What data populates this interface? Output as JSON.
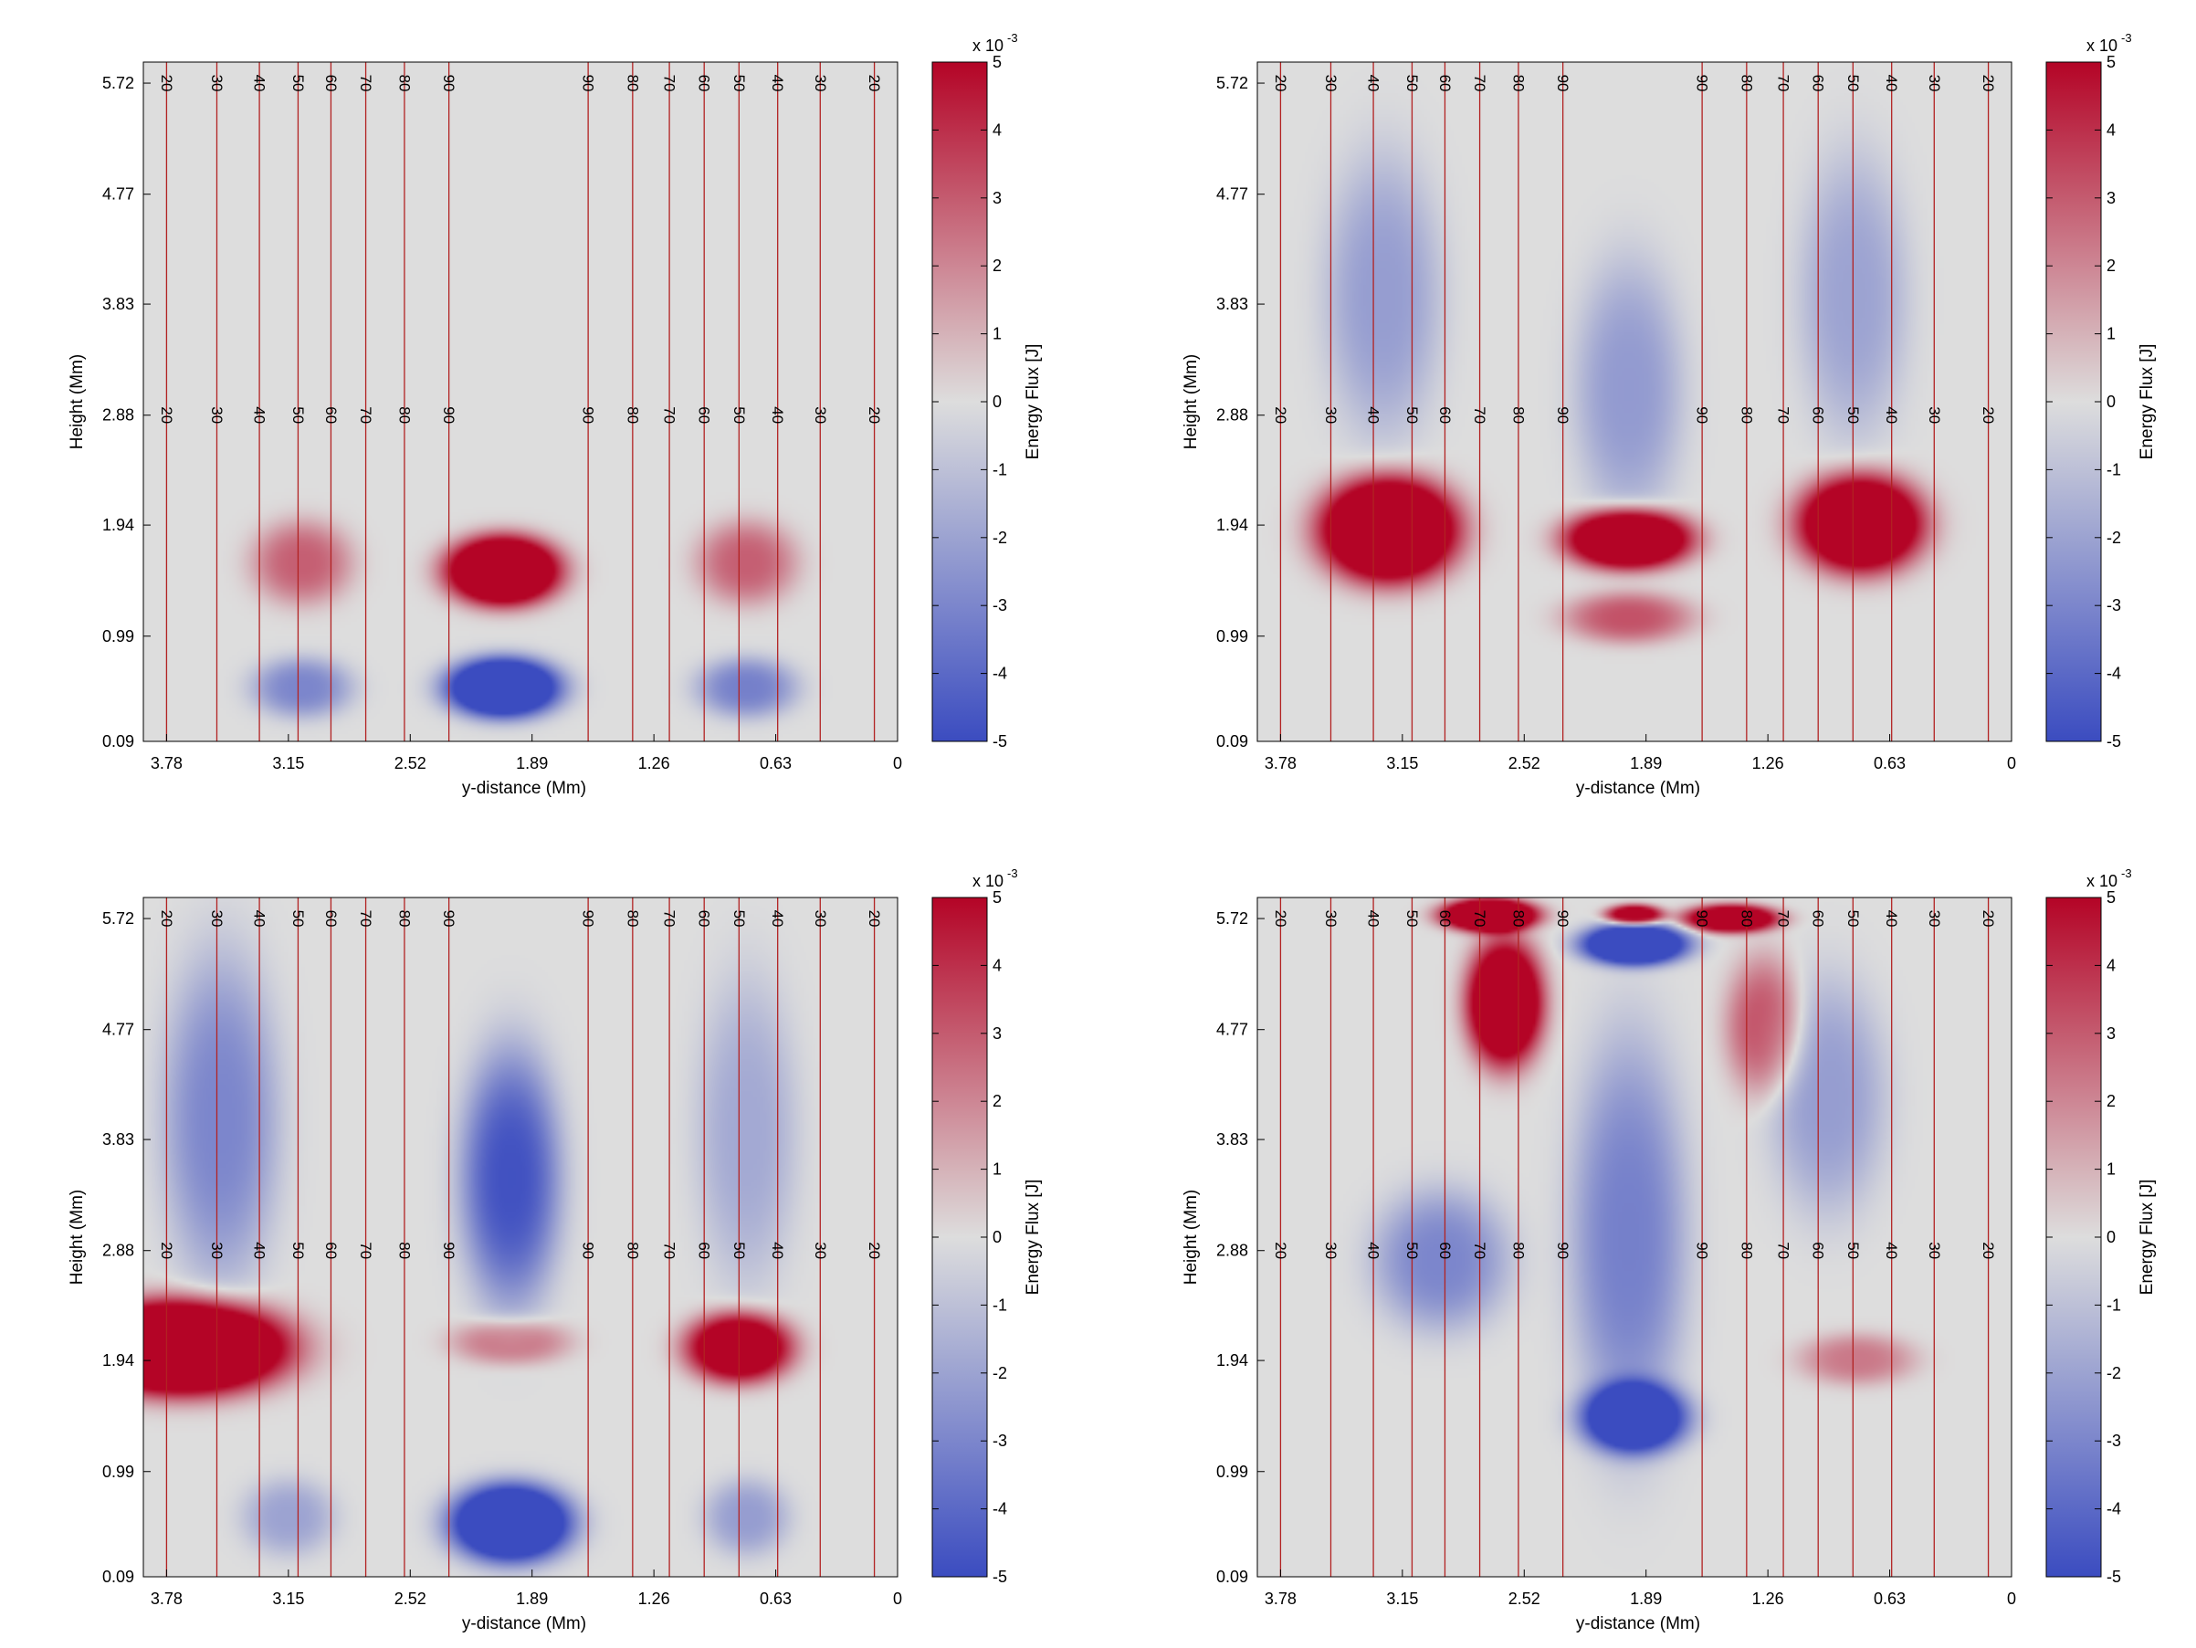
{
  "chart_data": {
    "type": "heatmap",
    "panels": [
      {
        "id": "top-left",
        "blobs": [
          {
            "yc": 3.08,
            "hc": 1.62,
            "sy": 0.26,
            "sh": 0.36,
            "amp": 2.9
          },
          {
            "yc": 2.04,
            "hc": 1.55,
            "sy": 0.3,
            "sh": 0.3,
            "amp": 9.5
          },
          {
            "yc": 0.78,
            "hc": 1.62,
            "sy": 0.26,
            "sh": 0.36,
            "amp": 2.9
          },
          {
            "yc": 3.08,
            "hc": 0.55,
            "sy": 0.26,
            "sh": 0.26,
            "amp": -3.0
          },
          {
            "yc": 2.04,
            "hc": 0.55,
            "sy": 0.3,
            "sh": 0.26,
            "amp": -9.0
          },
          {
            "yc": 0.78,
            "hc": 0.55,
            "sy": 0.26,
            "sh": 0.26,
            "amp": -3.2
          }
        ]
      },
      {
        "id": "top-right",
        "blobs": [
          {
            "yc": 3.25,
            "hc": 3.9,
            "sy": 0.3,
            "sh": 1.2,
            "amp": -2.2
          },
          {
            "yc": 1.98,
            "hc": 3.1,
            "sy": 0.28,
            "sh": 1.1,
            "amp": -2.3
          },
          {
            "yc": 0.82,
            "hc": 3.9,
            "sy": 0.28,
            "sh": 1.2,
            "amp": -2.0
          },
          {
            "yc": 3.22,
            "hc": 1.9,
            "sy": 0.36,
            "sh": 0.45,
            "amp": 10.0
          },
          {
            "yc": 1.98,
            "hc": 1.82,
            "sy": 0.33,
            "sh": 0.26,
            "amp": 9.0
          },
          {
            "yc": 1.98,
            "hc": 1.15,
            "sy": 0.33,
            "sh": 0.22,
            "amp": 3.2
          },
          {
            "yc": 0.78,
            "hc": 1.95,
            "sy": 0.33,
            "sh": 0.42,
            "amp": 9.0
          }
        ]
      },
      {
        "id": "bottom-left",
        "blobs": [
          {
            "yc": 3.5,
            "hc": 4.0,
            "sy": 0.3,
            "sh": 1.4,
            "amp": -3.0
          },
          {
            "yc": 2.0,
            "hc": 3.5,
            "sy": 0.26,
            "sh": 1.1,
            "amp": -4.8
          },
          {
            "yc": 0.78,
            "hc": 3.9,
            "sy": 0.26,
            "sh": 1.3,
            "amp": -1.8
          },
          {
            "yc": 3.7,
            "hc": 2.05,
            "sy": 0.55,
            "sh": 0.4,
            "amp": 11.0
          },
          {
            "yc": 2.0,
            "hc": 2.1,
            "sy": 0.3,
            "sh": 0.2,
            "amp": 2.6
          },
          {
            "yc": 0.82,
            "hc": 2.05,
            "sy": 0.28,
            "sh": 0.3,
            "amp": 7.5
          },
          {
            "yc": 3.15,
            "hc": 0.6,
            "sy": 0.24,
            "sh": 0.33,
            "amp": -2.0
          },
          {
            "yc": 2.0,
            "hc": 0.55,
            "sy": 0.32,
            "sh": 0.34,
            "amp": -9.0
          },
          {
            "yc": 0.78,
            "hc": 0.6,
            "sy": 0.22,
            "sh": 0.33,
            "amp": -2.2
          }
        ]
      },
      {
        "id": "bottom-right",
        "blobs": [
          {
            "yc": 2.95,
            "hc": 2.8,
            "sy": 0.35,
            "sh": 0.6,
            "amp": -3.0
          },
          {
            "yc": 1.98,
            "hc": 3.0,
            "sy": 0.3,
            "sh": 1.7,
            "amp": -3.2
          },
          {
            "yc": 0.95,
            "hc": 4.2,
            "sy": 0.3,
            "sh": 1.0,
            "amp": -2.2
          },
          {
            "yc": 2.62,
            "hc": 5.0,
            "sy": 0.2,
            "sh": 0.55,
            "amp": 8.5
          },
          {
            "yc": 2.7,
            "hc": 5.75,
            "sy": 0.25,
            "sh": 0.14,
            "amp": 10.0
          },
          {
            "yc": 1.95,
            "hc": 5.75,
            "sy": 0.15,
            "sh": 0.09,
            "amp": 7.0
          },
          {
            "yc": 1.45,
            "hc": 5.72,
            "sy": 0.25,
            "sh": 0.12,
            "amp": 8.0
          },
          {
            "yc": 1.28,
            "hc": 4.8,
            "sy": 0.2,
            "sh": 0.6,
            "amp": 3.2
          },
          {
            "yc": 1.95,
            "hc": 5.5,
            "sy": 0.28,
            "sh": 0.18,
            "amp": -9.0
          },
          {
            "yc": 1.95,
            "hc": 1.45,
            "sy": 0.28,
            "sh": 0.3,
            "amp": -7.5
          },
          {
            "yc": 0.8,
            "hc": 1.95,
            "sy": 0.3,
            "sh": 0.22,
            "amp": 2.3
          }
        ]
      }
    ],
    "x_ticks": [
      "3.78",
      "3.15",
      "2.52",
      "1.89",
      "1.26",
      "0.63",
      "0"
    ],
    "y_ticks": [
      "5.72",
      "4.77",
      "3.83",
      "2.88",
      "1.94",
      "0.99",
      "0.09"
    ],
    "xlabel": "y-distance (Mm)",
    "ylabel": "Height (Mm)",
    "xlim": [
      3.9,
      0
    ],
    "ylim": [
      0.09,
      5.9
    ],
    "colorbar": {
      "label": "Energy Flux [J]",
      "ticks": [
        "5",
        "4",
        "3",
        "2",
        "1",
        "0",
        "-1",
        "-2",
        "-3",
        "-4",
        "-5"
      ],
      "exponent_base": "x 10",
      "exponent_power": "-3",
      "range": [
        -5,
        5
      ],
      "colors": [
        "#3b4cc0",
        "#dddddd",
        "#b40426"
      ]
    },
    "contours": {
      "color": "#b22222",
      "levels_left": [
        {
          "y": 3.78,
          "label": "20"
        },
        {
          "y": 3.52,
          "label": "30"
        },
        {
          "y": 3.3,
          "label": "40"
        },
        {
          "y": 3.1,
          "label": "50"
        },
        {
          "y": 2.93,
          "label": "60"
        },
        {
          "y": 2.75,
          "label": "70"
        },
        {
          "y": 2.55,
          "label": "80"
        },
        {
          "y": 2.32,
          "label": "90"
        }
      ],
      "levels_right": [
        {
          "y": 1.6,
          "label": "90"
        },
        {
          "y": 1.37,
          "label": "80"
        },
        {
          "y": 1.18,
          "label": "70"
        },
        {
          "y": 1.0,
          "label": "60"
        },
        {
          "y": 0.82,
          "label": "50"
        },
        {
          "y": 0.62,
          "label": "40"
        },
        {
          "y": 0.4,
          "label": "30"
        },
        {
          "y": 0.12,
          "label": "20"
        }
      ],
      "label_heights": [
        5.72,
        2.88
      ]
    },
    "background_color": "#dddddd"
  }
}
